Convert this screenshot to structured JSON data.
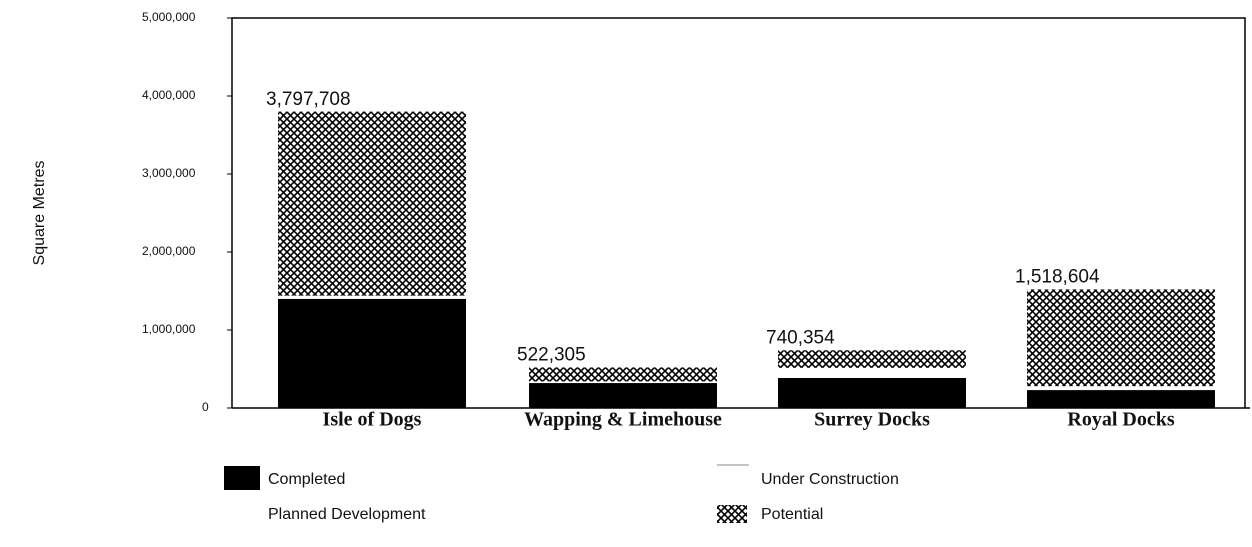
{
  "chart_data": {
    "type": "stacked_bar",
    "y_label": "Square Metres",
    "categories": [
      "Isle of Dogs",
      "Wapping & Limehouse",
      "Surrey Docks",
      "Royal Docks"
    ],
    "series": [
      {
        "name": "Completed",
        "color": "#000000",
        "values": [
          1400000,
          320000,
          385000,
          230000
        ]
      },
      {
        "name": "Under Construction",
        "color": "#ffffff",
        "values": [
          40000,
          20000,
          30000,
          50000
        ]
      },
      {
        "name": "Planned Development",
        "color": "#ffffff",
        "values": [
          0,
          0,
          100000,
          0
        ]
      },
      {
        "name": "Potential",
        "color": "#000000",
        "hatch": true,
        "values": [
          2360000,
          180000,
          225000,
          1240000
        ]
      }
    ],
    "totals": [
      3797708,
      522305,
      740354,
      1518604
    ],
    "total_labels": [
      "3,797,708",
      "522,305",
      "740,354",
      "1,518,604"
    ],
    "ylim": [
      0,
      5000000
    ],
    "yticks": [
      0,
      {
        "value": 1000000,
        "label": "1,000,000"
      },
      {
        "value": 2000000,
        "label": "2,000,000"
      },
      {
        "value": 3000000,
        "label": "3,000,000"
      },
      {
        "value": 4000000,
        "label": "4,000,000"
      },
      {
        "value": 5000000,
        "label": "5,000,000"
      }
    ]
  }
}
